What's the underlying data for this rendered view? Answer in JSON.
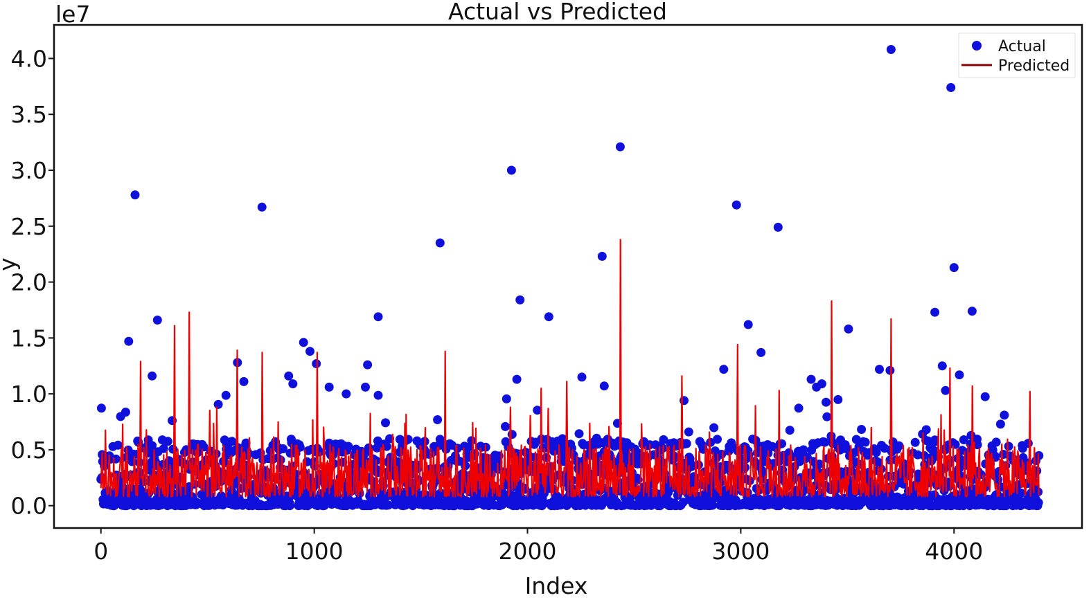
{
  "chart_data": {
    "type": "scatter",
    "title": "Actual vs Predicted",
    "xlabel": "Index",
    "ylabel": "y",
    "offset_text": "le7",
    "xlim": [
      -220,
      4600
    ],
    "ylim": [
      -0.2,
      4.3
    ],
    "xticks": [
      0,
      1000,
      2000,
      3000,
      4000
    ],
    "xtick_labels": [
      "0",
      "1000",
      "2000",
      "3000",
      "4000"
    ],
    "yticks": [
      0.0,
      0.5,
      1.0,
      1.5,
      2.0,
      2.5,
      3.0,
      3.5,
      4.0
    ],
    "ytick_labels": [
      "0.0",
      "0.5",
      "1.0",
      "1.5",
      "2.0",
      "2.5",
      "3.0",
      "3.5",
      "4.0"
    ],
    "grid": false,
    "legend_position": "top-right",
    "n_points": 4400,
    "series": [
      {
        "name": "Actual",
        "kind": "scatter",
        "color": "#1010dd",
        "highlights": [
          [
            160,
            2.78
          ],
          [
            755,
            2.67
          ],
          [
            1590,
            2.35
          ],
          [
            1925,
            3.0
          ],
          [
            2435,
            3.21
          ],
          [
            2980,
            2.69
          ],
          [
            3175,
            2.49
          ],
          [
            2350,
            2.23
          ],
          [
            1965,
            1.84
          ],
          [
            2100,
            1.69
          ],
          [
            1300,
            1.69
          ],
          [
            265,
            1.66
          ],
          [
            3705,
            4.08
          ],
          [
            3985,
            3.74
          ],
          [
            4000,
            2.13
          ],
          [
            3910,
            1.73
          ],
          [
            4085,
            1.74
          ],
          [
            3505,
            1.58
          ],
          [
            3035,
            1.62
          ],
          [
            950,
            1.46
          ],
          [
            130,
            1.47
          ],
          [
            3095,
            1.37
          ],
          [
            980,
            1.38
          ],
          [
            1250,
            1.26
          ],
          [
            640,
            1.28
          ],
          [
            1010,
            1.27
          ],
          [
            2920,
            1.22
          ],
          [
            3650,
            1.22
          ],
          [
            3700,
            1.21
          ],
          [
            3945,
            1.25
          ],
          [
            3330,
            1.13
          ],
          [
            1950,
            1.13
          ],
          [
            2255,
            1.15
          ],
          [
            240,
            1.16
          ],
          [
            670,
            1.11
          ],
          [
            880,
            1.16
          ],
          [
            1240,
            1.06
          ],
          [
            3355,
            1.06
          ],
          [
            3380,
            1.09
          ],
          [
            3960,
            1.03
          ],
          [
            2360,
            1.07
          ],
          [
            4025,
            1.17
          ],
          [
            1070,
            1.06
          ],
          [
            1150,
            1.0
          ],
          [
            900,
            1.09
          ]
        ],
        "baseline_range": [
          0.0,
          0.6
        ]
      },
      {
        "name": "Predicted",
        "kind": "line",
        "color": "#ee0000",
        "legend_color": "#8b0000",
        "spikes": [
          [
            2435,
            2.38
          ],
          [
            3425,
            1.83
          ],
          [
            3705,
            1.67
          ],
          [
            415,
            1.73
          ],
          [
            345,
            1.61
          ],
          [
            1615,
            1.38
          ],
          [
            755,
            1.37
          ],
          [
            640,
            1.39
          ],
          [
            2985,
            1.44
          ],
          [
            1015,
            1.37
          ],
          [
            185,
            1.29
          ],
          [
            2725,
            1.16
          ],
          [
            3980,
            1.23
          ],
          [
            3180,
            1.03
          ],
          [
            4085,
            1.07
          ],
          [
            4355,
            1.02
          ],
          [
            2185,
            1.11
          ],
          [
            2065,
            1.05
          ],
          [
            1920,
            0.88
          ]
        ],
        "baseline_range": [
          0.08,
          0.55
        ]
      }
    ]
  }
}
